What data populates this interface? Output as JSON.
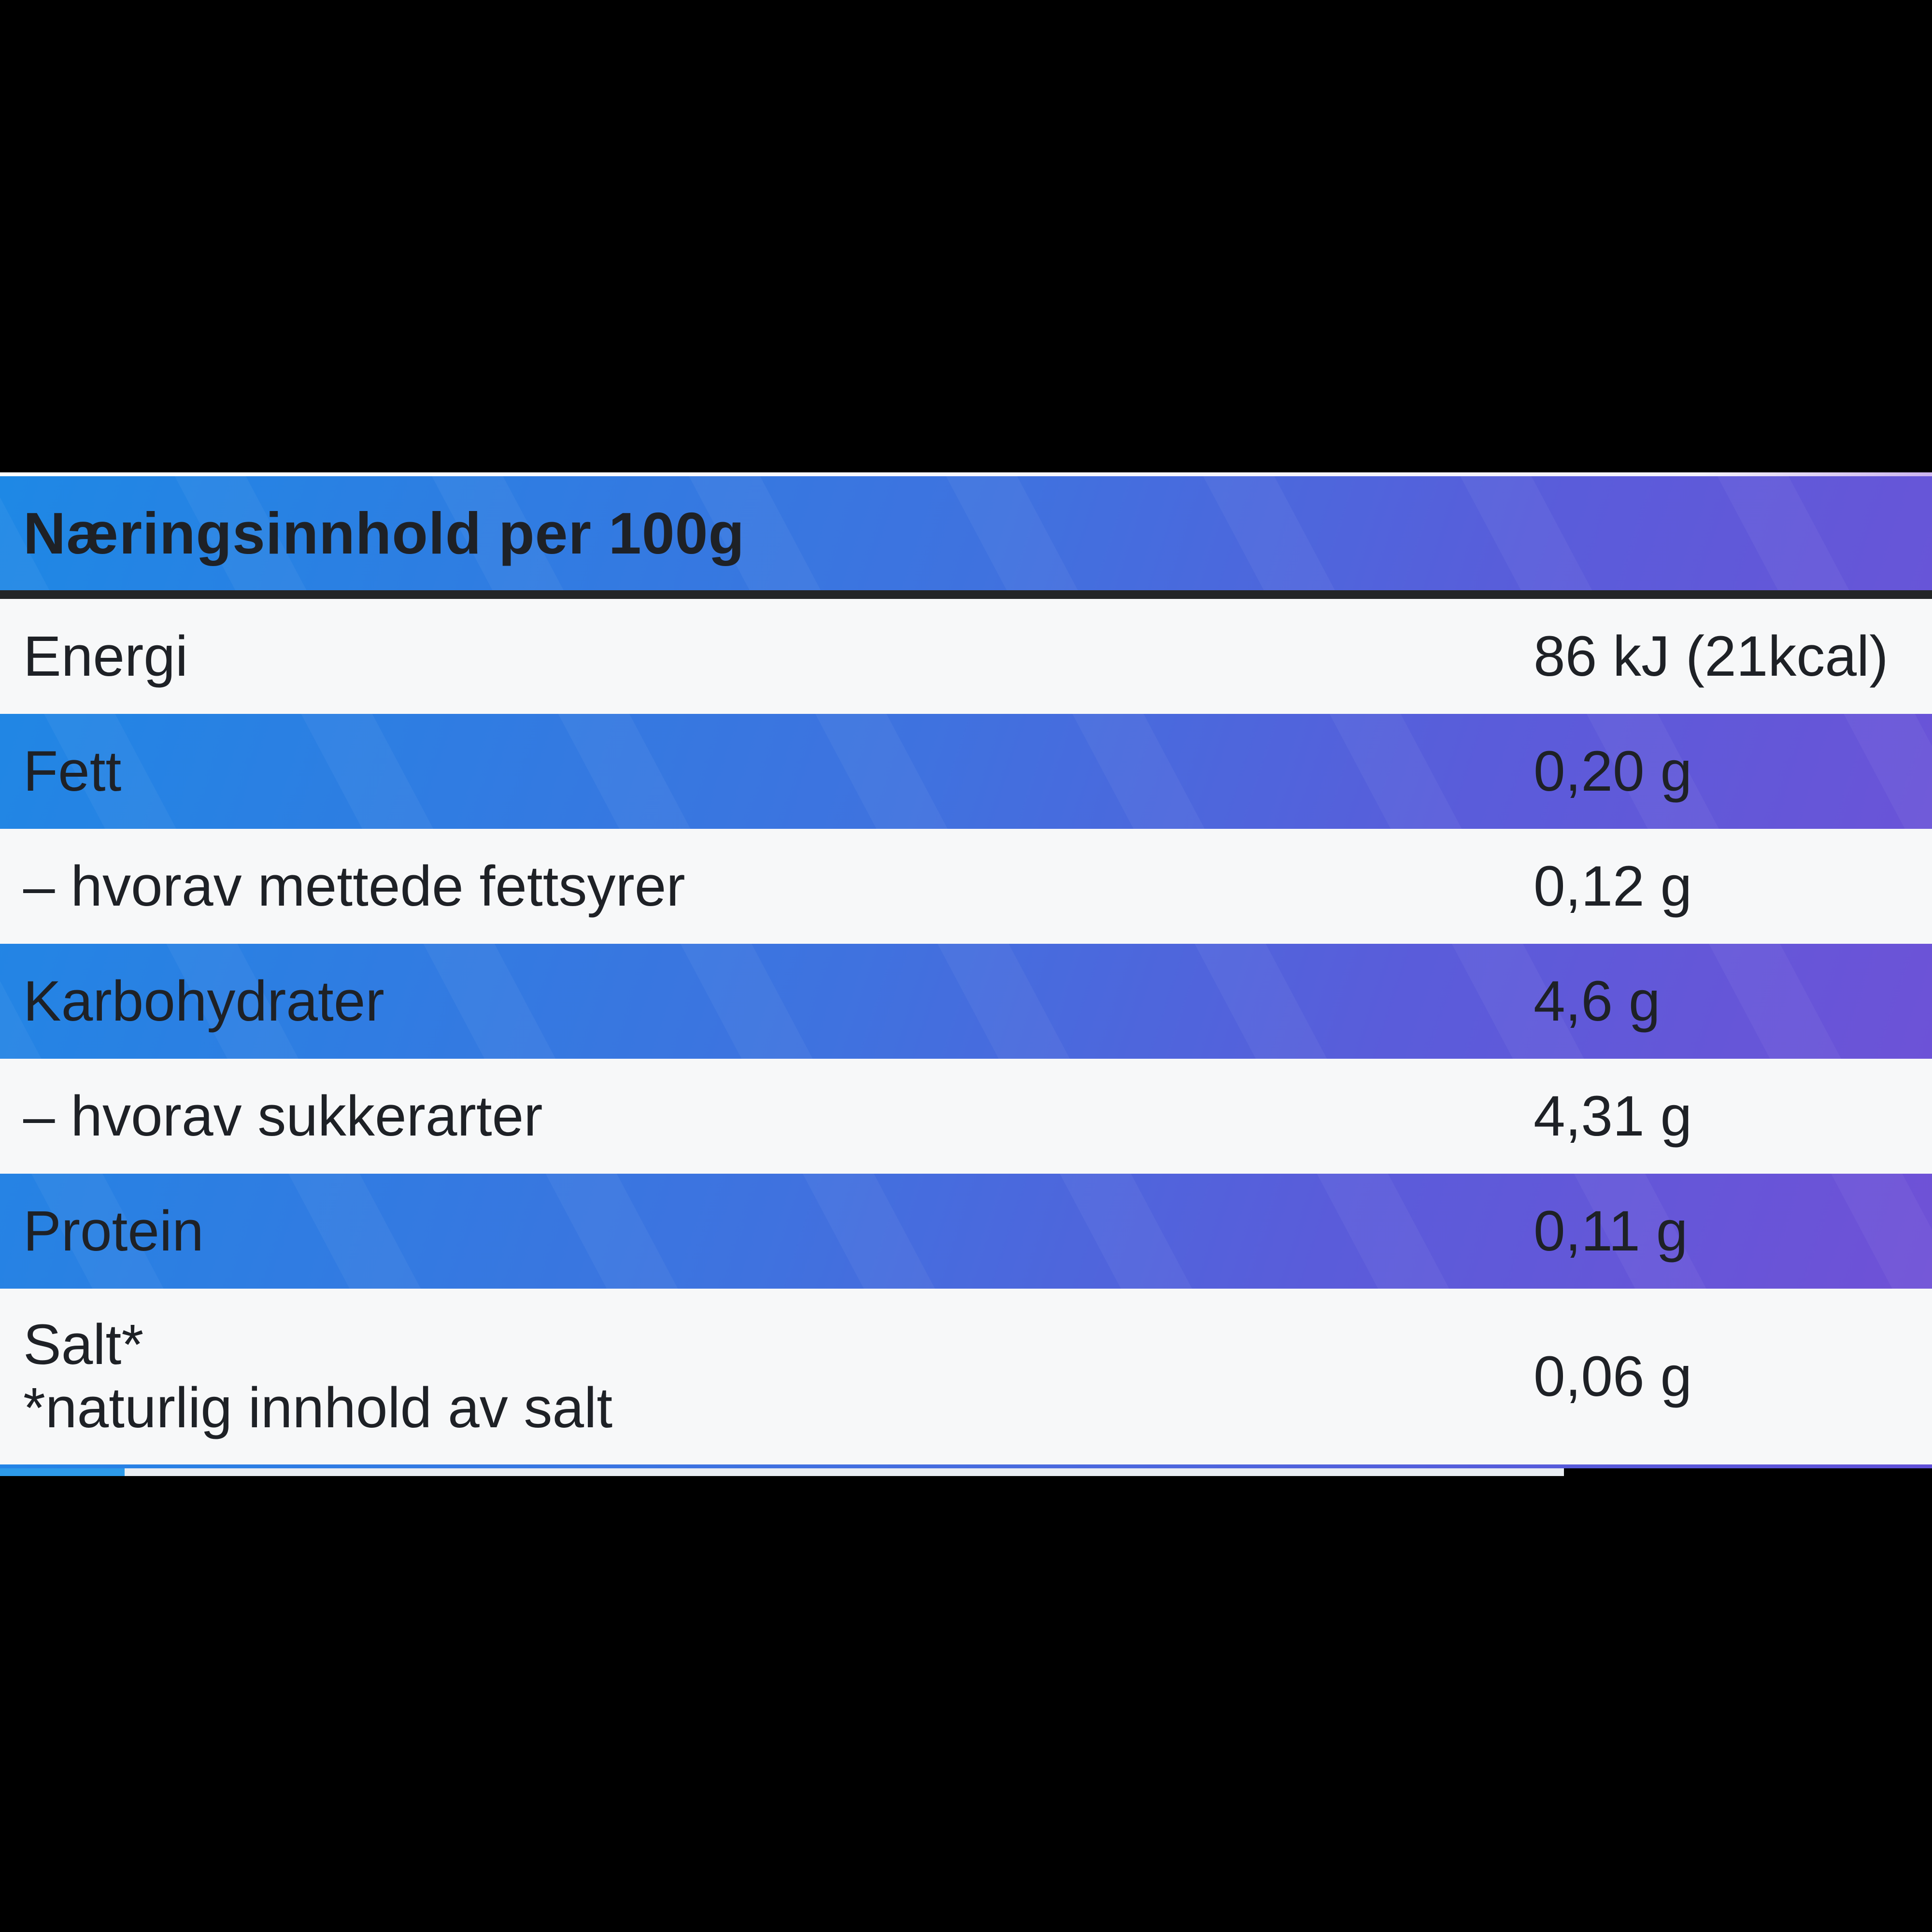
{
  "screen": {
    "background": "#000000"
  },
  "table": {
    "title": "Næringsinnhold per 100g",
    "rows": [
      {
        "label": "Energi",
        "value": "86 kJ (21kcal)"
      },
      {
        "label": "Fett",
        "value": "0,20 g"
      },
      {
        "label": "– hvorav mettede fettsyrer",
        "value": "0,12 g"
      },
      {
        "label": "Karbohydrater",
        "value": "4,6 g"
      },
      {
        "label": "– hvorav sukkerarter",
        "value": "4,31 g"
      },
      {
        "label": "Protein",
        "value": "0,11 g"
      },
      {
        "label": "Salt*",
        "note": "*naturlig innhold av salt",
        "value": "0,06 g"
      }
    ],
    "colors": {
      "gradient_start": "#1e88e5",
      "gradient_end": "#7150d6",
      "row_light": "#f7f8f9",
      "header_divider": "#232527",
      "text": "#1e2126",
      "top_border": "#ffffff",
      "next_row_blue": "#2d9ae9",
      "next_row_sliver": "#e9edf2"
    }
  }
}
